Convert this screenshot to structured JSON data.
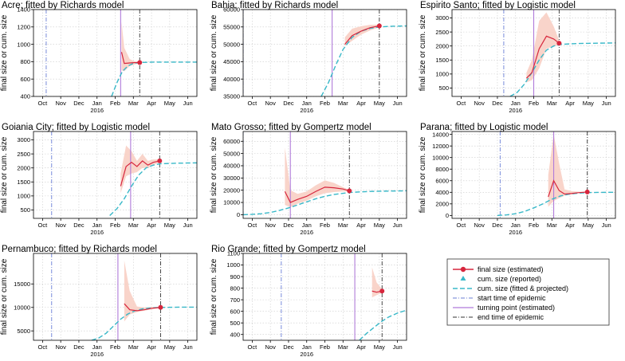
{
  "figure": {
    "ylabel": "final size or cum. size",
    "year_label": "2016",
    "month_ticks": [
      "Oct",
      "Nov",
      "Dec",
      "Jan",
      "Feb",
      "Mar",
      "Apr",
      "May",
      "Jun"
    ]
  },
  "colors": {
    "final_size": "#d7263d",
    "band": "#f8cfc4",
    "cum_size": "#38b8c8",
    "start_line": "#6a7fd6",
    "turning_line": "#b07bd9",
    "end_line": "#333333",
    "grid": "#cccccc"
  },
  "legend": {
    "position": "bottom-right",
    "items": [
      {
        "key": "final",
        "label": "final size (estimated)"
      },
      {
        "key": "cum_rep",
        "label": "cum. size (reported)"
      },
      {
        "key": "cum_fit",
        "label": "cum. size (fitted & projected)"
      },
      {
        "key": "start",
        "label": "start time of epidemic"
      },
      {
        "key": "turn",
        "label": "turning point (estimated)"
      },
      {
        "key": "end",
        "label": "end time of epidemic"
      }
    ]
  },
  "chart_data": [
    {
      "type": "line",
      "title": "Acre; fitted by Richards model",
      "ylim": [
        400,
        1400
      ],
      "yticks": [
        400,
        600,
        800,
        1000,
        1200,
        1400
      ],
      "xlim": [
        0,
        9
      ],
      "start": 0.7,
      "turning": 4.8,
      "end": 5.85,
      "final_size": {
        "x": [
          4.85,
          5.0,
          5.3,
          5.6,
          5.85
        ],
        "y": [
          910,
          780,
          785,
          790,
          790
        ],
        "low": [
          700,
          690,
          750,
          770,
          780
        ],
        "high": [
          1260,
          960,
          830,
          800,
          795
        ]
      },
      "cum_size": {
        "x": [
          4.3,
          4.6,
          4.9,
          5.2,
          5.5,
          5.85,
          6.5,
          7.5,
          9
        ],
        "y": [
          400,
          560,
          690,
          750,
          780,
          790,
          795,
          795,
          795
        ]
      }
    },
    {
      "type": "line",
      "title": "Bahia; fitted by Richards model",
      "ylim": [
        35000,
        60000
      ],
      "yticks": [
        35000,
        40000,
        45000,
        50000,
        55000,
        60000
      ],
      "xlim": [
        0,
        9
      ],
      "start": 0.0,
      "turning": 4.9,
      "end": 7.5,
      "final_size": {
        "x": [
          5.6,
          6.0,
          6.5,
          7.0,
          7.5
        ],
        "y": [
          50000,
          52500,
          53800,
          54800,
          55300
        ],
        "low": [
          49500,
          51000,
          52800,
          54000,
          54900
        ],
        "high": [
          52000,
          54500,
          55200,
          55600,
          55700
        ]
      },
      "cum_size": {
        "x": [
          4.3,
          4.7,
          5.1,
          5.5,
          6.0,
          6.5,
          7.0,
          7.5,
          8.2,
          9
        ],
        "y": [
          35000,
          39000,
          44000,
          48500,
          52000,
          53800,
          54600,
          55000,
          55200,
          55300
        ]
      }
    },
    {
      "type": "line",
      "title": "Espirito Santo; fitted by Logistic model",
      "ylim": [
        200,
        3300
      ],
      "yticks": [
        500,
        1000,
        1500,
        2000,
        2500,
        3000
      ],
      "xlim": [
        0,
        9
      ],
      "start": 2.85,
      "turning": 4.5,
      "end": 5.9,
      "final_size": {
        "x": [
          4.1,
          4.4,
          4.8,
          5.2,
          5.6,
          5.9
        ],
        "y": [
          850,
          1050,
          1900,
          2350,
          2250,
          2100
        ],
        "low": [
          700,
          780,
          1200,
          1900,
          2000,
          2030
        ],
        "high": [
          1050,
          1500,
          2900,
          3200,
          2700,
          2200
        ]
      },
      "cum_size": {
        "x": [
          3.2,
          3.6,
          4.0,
          4.4,
          4.8,
          5.2,
          5.6,
          6.0,
          7.0,
          8.0,
          9.0
        ],
        "y": [
          200,
          350,
          650,
          1050,
          1500,
          1850,
          2000,
          2060,
          2090,
          2100,
          2110
        ]
      }
    },
    {
      "type": "line",
      "title": "Goiania City; fitted by Logistic model",
      "ylim": [
        200,
        3300
      ],
      "yticks": [
        500,
        1000,
        1500,
        2000,
        2500,
        3000
      ],
      "xlim": [
        0,
        9
      ],
      "start": 1.0,
      "turning": 5.35,
      "end": 6.95,
      "final_size": {
        "x": [
          4.8,
          5.1,
          5.4,
          5.7,
          6.0,
          6.3,
          6.6,
          6.95
        ],
        "y": [
          1350,
          2050,
          2200,
          2050,
          2250,
          2100,
          2200,
          2250
        ],
        "low": [
          1100,
          1700,
          1800,
          1850,
          2000,
          2000,
          2100,
          2200
        ],
        "high": [
          1800,
          2800,
          2600,
          2250,
          2500,
          2250,
          2300,
          2300
        ]
      },
      "cum_size": {
        "x": [
          4.2,
          4.6,
          5.0,
          5.4,
          5.8,
          6.2,
          6.6,
          7.0,
          8.0,
          9.0
        ],
        "y": [
          300,
          550,
          900,
          1350,
          1750,
          2000,
          2100,
          2150,
          2170,
          2180
        ]
      }
    },
    {
      "type": "line",
      "title": "Mato Grosso; fitted by Gompertz model",
      "ylim": [
        -3000,
        68000
      ],
      "yticks": [
        0,
        10000,
        20000,
        30000,
        40000,
        50000,
        60000
      ],
      "xlim": [
        0,
        9
      ],
      "start": 0.0,
      "turning": 2.6,
      "end": 5.85,
      "final_size": {
        "x": [
          2.3,
          2.6,
          3.0,
          3.5,
          4.0,
          4.5,
          5.0,
          5.5,
          5.85
        ],
        "y": [
          19000,
          10000,
          12500,
          15000,
          19000,
          22500,
          22000,
          21000,
          19500
        ],
        "low": [
          8000,
          6000,
          9000,
          11500,
          15000,
          17500,
          18500,
          19000,
          18800
        ],
        "high": [
          55000,
          20000,
          17000,
          19000,
          24000,
          28000,
          26000,
          22500,
          20200
        ]
      },
      "cum_size": {
        "x": [
          0.0,
          0.5,
          1.0,
          1.5,
          2.0,
          2.5,
          3.0,
          3.5,
          4.0,
          4.5,
          5.0,
          5.5,
          6.0,
          7.0,
          8.0,
          9.0
        ],
        "y": [
          0,
          300,
          800,
          1800,
          3500,
          5500,
          8000,
          10500,
          13000,
          15000,
          16500,
          17500,
          18300,
          19000,
          19300,
          19500
        ]
      }
    },
    {
      "type": "line",
      "title": "Parana; fitted by Logistic model",
      "ylim": [
        -500,
        14500
      ],
      "yticks": [
        0,
        2000,
        4000,
        6000,
        8000,
        10000,
        12000,
        14000
      ],
      "xlim": [
        0,
        9
      ],
      "start": 2.65,
      "turning": 5.6,
      "end": 7.45,
      "final_size": {
        "x": [
          5.3,
          5.6,
          5.9,
          6.2,
          6.6,
          7.0,
          7.45
        ],
        "y": [
          3200,
          6000,
          4300,
          3700,
          3800,
          3950,
          4050
        ],
        "low": [
          1500,
          2500,
          3000,
          3400,
          3650,
          3900,
          4000
        ],
        "high": [
          7000,
          14000,
          9000,
          4500,
          4200,
          4100,
          4100
        ]
      },
      "cum_size": {
        "x": [
          2.5,
          3.0,
          3.5,
          4.0,
          4.5,
          5.0,
          5.5,
          6.0,
          6.5,
          7.0,
          7.5,
          8.0,
          9.0
        ],
        "y": [
          0,
          100,
          300,
          700,
          1300,
          2000,
          2800,
          3400,
          3700,
          3850,
          3950,
          3980,
          4000
        ]
      }
    },
    {
      "type": "line",
      "title": "Pernambuco; fitted by Richards model",
      "ylim": [
        3000,
        21500
      ],
      "yticks": [
        5000,
        10000,
        15000
      ],
      "xlim": [
        0,
        9
      ],
      "start": 1.0,
      "turning": 4.65,
      "end": 7.0,
      "final_size": {
        "x": [
          5.0,
          5.3,
          5.7,
          6.1,
          6.5,
          7.0
        ],
        "y": [
          10800,
          9500,
          9300,
          9500,
          9800,
          10000
        ],
        "low": [
          7000,
          8500,
          9000,
          9300,
          9600,
          9900
        ],
        "high": [
          20000,
          13500,
          10200,
          10000,
          10100,
          10100
        ]
      },
      "cum_size": {
        "x": [
          3.2,
          3.6,
          4.0,
          4.4,
          4.8,
          5.2,
          5.6,
          6.0,
          6.5,
          7.0,
          8.0,
          9.0
        ],
        "y": [
          3000,
          3500,
          4500,
          6000,
          7500,
          8600,
          9300,
          9700,
          9900,
          10000,
          10050,
          10050
        ]
      }
    },
    {
      "type": "line",
      "title": "Rio Grande; fitted by Gompertz model",
      "ylim": [
        350,
        1100
      ],
      "yticks": [
        400,
        500,
        600,
        700,
        800,
        900,
        1000,
        1100
      ],
      "xlim": [
        0,
        9
      ],
      "start": 2.1,
      "turning": 6.15,
      "end": 7.65,
      "final_size": {
        "x": [
          7.1,
          7.35,
          7.65
        ],
        "y": [
          775,
          765,
          775
        ],
        "low": [
          720,
          740,
          760
        ],
        "high": [
          980,
          850,
          790
        ]
      },
      "cum_size": {
        "x": [
          6.4,
          6.8,
          7.2,
          7.6,
          8.0,
          8.5,
          9.0
        ],
        "y": [
          350,
          410,
          460,
          510,
          550,
          585,
          610
        ]
      }
    }
  ]
}
